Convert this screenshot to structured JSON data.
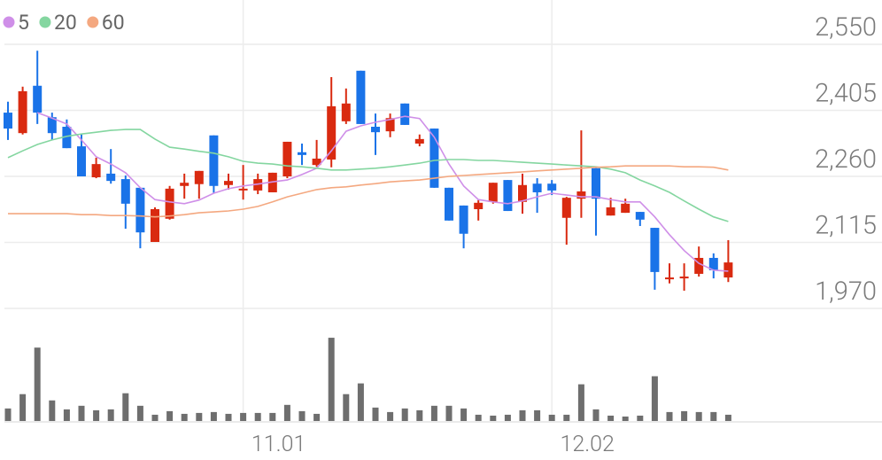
{
  "chart_data": {
    "type": "candlestick",
    "categories": [
      null,
      null,
      null,
      null,
      null,
      null,
      null,
      null,
      null,
      null,
      null,
      null,
      null,
      null,
      null,
      null,
      "11.01",
      null,
      null,
      null,
      null,
      null,
      null,
      null,
      null,
      null,
      null,
      null,
      null,
      null,
      null,
      null,
      null,
      null,
      null,
      null,
      null,
      "12.02",
      null,
      null,
      null,
      null,
      null,
      null,
      null,
      null,
      null,
      null,
      null,
      null
    ],
    "open": [
      2400,
      2355,
      2459,
      2390,
      2369,
      2326,
      2258,
      2266,
      2254,
      2235,
      2116,
      2167,
      2239,
      2243,
      2350,
      2241,
      2231,
      2229,
      2225,
      2260,
      2313,
      2285,
      2297,
      2381,
      2492,
      2369,
      2359,
      2420,
      2332,
      2365,
      2235,
      2196,
      2188,
      2204,
      2252,
      2204,
      2244,
      2244,
      2169,
      2211,
      2278,
      2174,
      2180,
      2182,
      2147,
      2034,
      2036,
      2046,
      2081,
      2038
    ],
    "high": [
      2424,
      2457,
      2536,
      2400,
      2385,
      2352,
      2301,
      2320,
      2262,
      2235,
      2192,
      2239,
      2266,
      2272,
      2350,
      2266,
      2285,
      2266,
      2268,
      2336,
      2332,
      2340,
      2478,
      2453,
      2492,
      2398,
      2398,
      2420,
      2352,
      2365,
      2235,
      2196,
      2208,
      2246,
      2252,
      2266,
      2256,
      2252,
      2215,
      2361,
      2278,
      2213,
      2211,
      2182,
      2147,
      2069,
      2069,
      2106,
      2091,
      2120
    ],
    "low": [
      2340,
      2352,
      2375,
      2340,
      2322,
      2260,
      2256,
      2244,
      2145,
      2102,
      2116,
      2165,
      2211,
      2211,
      2223,
      2231,
      2209,
      2221,
      2225,
      2256,
      2285,
      2281,
      2280,
      2375,
      2375,
      2307,
      2346,
      2373,
      2326,
      2235,
      2163,
      2102,
      2163,
      2200,
      2184,
      2178,
      2180,
      2219,
      2110,
      2169,
      2130,
      2174,
      2180,
      2151,
      2011,
      2025,
      2009,
      2040,
      2036,
      2028
    ],
    "close": [
      2365,
      2447,
      2400,
      2355,
      2322,
      2260,
      2287,
      2250,
      2200,
      2137,
      2188,
      2233,
      2246,
      2272,
      2239,
      2250,
      2233,
      2254,
      2268,
      2336,
      2307,
      2299,
      2414,
      2420,
      2375,
      2357,
      2388,
      2373,
      2342,
      2235,
      2163,
      2134,
      2202,
      2246,
      2184,
      2241,
      2225,
      2229,
      2213,
      2227,
      2211,
      2192,
      2200,
      2165,
      2050,
      2038,
      2040,
      2081,
      2054,
      2071
    ],
    "up_color": "#d92a10",
    "down_color": "#1a73e8",
    "series": [
      {
        "name": "5",
        "color": "#cf8fe8",
        "values": [
          null,
          null,
          2400,
          2388,
          2375,
          2340,
          2303,
          2287,
          2268,
          2235,
          2209,
          2204,
          2200,
          2208,
          2223,
          2233,
          2239,
          2243,
          2248,
          2252,
          2264,
          2278,
          2316,
          2359,
          2371,
          2379,
          2385,
          2392,
          2387,
          2346,
          2287,
          2239,
          2209,
          2204,
          2200,
          2206,
          2215,
          2223,
          2219,
          2215,
          2215,
          2209,
          2204,
          2204,
          2171,
          2132,
          2097,
          2069,
          2054,
          2052
        ]
      },
      {
        "name": "20",
        "color": "#84d6a0",
        "values": [
          2301,
          2316,
          2330,
          2340,
          2348,
          2353,
          2357,
          2361,
          2363,
          2363,
          2342,
          2324,
          2320,
          2315,
          2311,
          2303,
          2293,
          2289,
          2287,
          2283,
          2281,
          2278,
          2274,
          2274,
          2276,
          2278,
          2281,
          2285,
          2289,
          2295,
          2297,
          2297,
          2295,
          2295,
          2293,
          2291,
          2289,
          2287,
          2285,
          2283,
          2281,
          2276,
          2268,
          2252,
          2239,
          2225,
          2206,
          2188,
          2171,
          2161
        ]
      },
      {
        "name": "60",
        "color": "#f4a880",
        "values": [
          2178,
          2178,
          2178,
          2178,
          2178,
          2176,
          2176,
          2174,
          2174,
          2173,
          2171,
          2173,
          2176,
          2180,
          2182,
          2184,
          2188,
          2194,
          2204,
          2215,
          2223,
          2231,
          2235,
          2237,
          2241,
          2244,
          2248,
          2250,
          2252,
          2256,
          2260,
          2262,
          2264,
          2266,
          2268,
          2270,
          2272,
          2274,
          2276,
          2278,
          2280,
          2281,
          2283,
          2283,
          2283,
          2283,
          2281,
          2281,
          2280,
          2274
        ]
      }
    ],
    "ylim": [
      1970,
      2550
    ],
    "yticks": [
      {
        "value": 1970,
        "label": "1,970"
      },
      {
        "value": 2115,
        "label": "2,115"
      },
      {
        "value": 2260,
        "label": "2,260"
      },
      {
        "value": 2405,
        "label": "2,405"
      },
      {
        "value": 2550,
        "label": "2,550"
      }
    ],
    "grid": true,
    "volume": {
      "color": "#6e6e6e",
      "ylim": [
        0,
        100
      ],
      "values": [
        14,
        30,
        82,
        23,
        13,
        17,
        12,
        13,
        31,
        17,
        7,
        11,
        8,
        9,
        10,
        8,
        9,
        9,
        9,
        18,
        11,
        8,
        93,
        30,
        42,
        15,
        10,
        14,
        12,
        17,
        17,
        14,
        7,
        6,
        7,
        12,
        12,
        7,
        7,
        41,
        13,
        6,
        5,
        6,
        50,
        10,
        11,
        10,
        10,
        7
      ]
    }
  }
}
